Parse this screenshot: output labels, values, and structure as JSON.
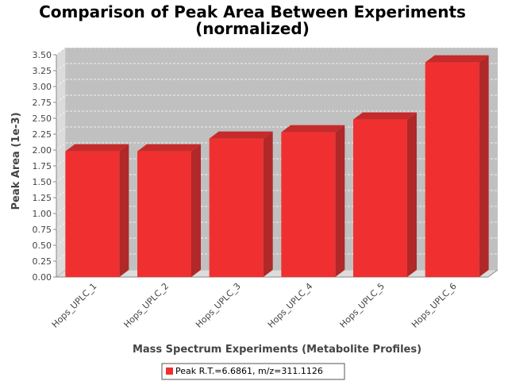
{
  "chart_data": {
    "type": "bar",
    "title_lines": [
      "Comparison of Peak Area Between Experiments",
      "(normalized)"
    ],
    "xlabel": "Mass Spectrum Experiments (Metabolite Profiles)",
    "ylabel": "Peak Area (1e-3)",
    "categories": [
      "Hops_UPLC_1",
      "Hops_UPLC_2",
      "Hops_UPLC_3",
      "Hops_UPLC_4",
      "Hops_UPLC_5",
      "Hops_UPLC_6"
    ],
    "series": [
      {
        "name": "Peak R.T.=6.6861, m/z=311.1126",
        "values": [
          1.98,
          1.98,
          2.18,
          2.28,
          2.48,
          3.38
        ]
      }
    ],
    "ylim": [
      0,
      3.5
    ],
    "yticks": [
      "0.00",
      "0.25",
      "0.50",
      "0.75",
      "1.00",
      "1.25",
      "1.50",
      "1.75",
      "2.00",
      "2.25",
      "2.50",
      "2.75",
      "3.00",
      "3.25",
      "3.50"
    ],
    "grid": true,
    "legend_position": "bottom",
    "style": "3d",
    "colors": {
      "bar": "#f03030",
      "bar_top": "#c62a2a",
      "bar_side": "#b02828",
      "plot_bg": "#c0c0c0",
      "wall": "#dcdcdc"
    }
  }
}
